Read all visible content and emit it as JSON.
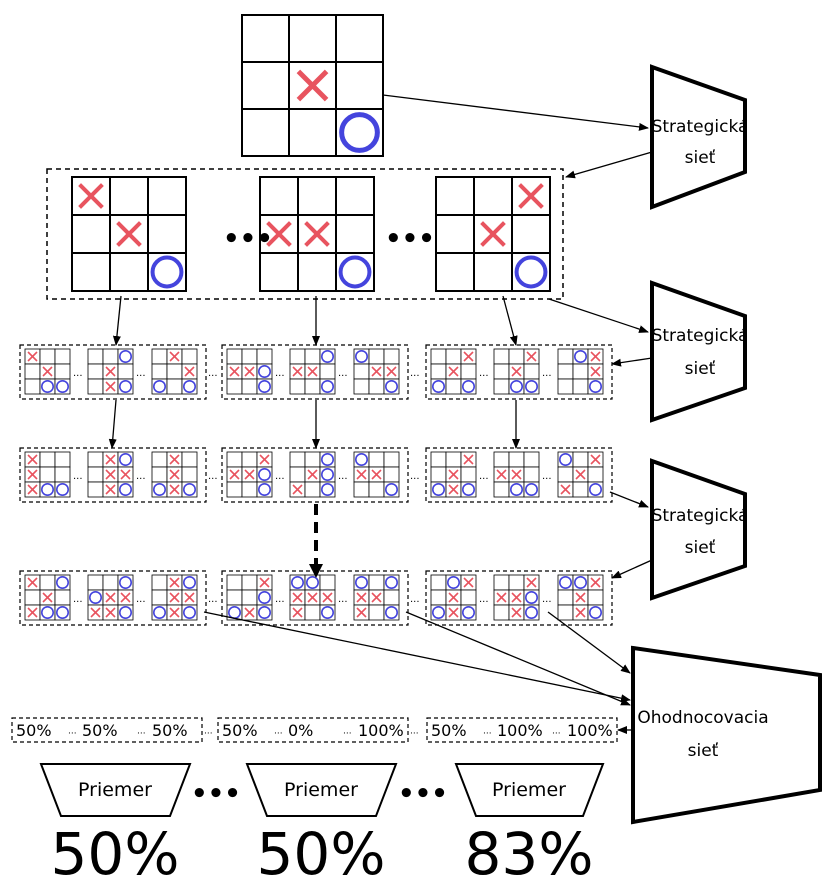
{
  "colors": {
    "x_mark": "#e8545f",
    "o_mark": "#4444dd",
    "line": "#000000"
  },
  "root_board": [
    "",
    "",
    "",
    "",
    "X",
    "",
    "",
    "",
    "O"
  ],
  "level1": {
    "boards": [
      [
        "X",
        "",
        "",
        "",
        "X",
        "",
        "",
        "",
        "O"
      ],
      [
        "",
        "",
        "",
        "X",
        "X",
        "",
        "",
        "",
        "O"
      ],
      [
        "",
        "",
        "X",
        "",
        "X",
        "",
        "",
        "",
        "O"
      ]
    ],
    "separator": "•••"
  },
  "small_separator": "···",
  "rows": [
    {
      "groups": [
        [
          [
            "X",
            "",
            "",
            "",
            "X",
            "",
            "",
            "O",
            "O"
          ],
          [
            "",
            "",
            "O",
            "",
            "X",
            "",
            "",
            "X",
            "O"
          ],
          [
            "",
            "X",
            "",
            "",
            "",
            "X",
            "O",
            "",
            "O"
          ]
        ],
        [
          [
            "",
            "",
            "",
            "X",
            "X",
            "O",
            "",
            "",
            "O"
          ],
          [
            "",
            "",
            "O",
            "X",
            "X",
            "",
            "",
            "",
            "O"
          ],
          [
            "O",
            "",
            "",
            "",
            "X",
            "X",
            "",
            "",
            "O"
          ]
        ],
        [
          [
            "",
            "",
            "X",
            "",
            "X",
            "",
            "O",
            "",
            "O"
          ],
          [
            "",
            "",
            "X",
            "",
            "X",
            "",
            "",
            "O",
            "O"
          ],
          [
            "",
            "O",
            "X",
            "",
            "",
            "X",
            "",
            "",
            "O"
          ]
        ]
      ]
    },
    {
      "groups": [
        [
          [
            "X",
            "",
            "",
            "X",
            "",
            "",
            "X",
            "O",
            "O"
          ],
          [
            "",
            "X",
            "O",
            "",
            "X",
            "X",
            "",
            "X",
            "O"
          ],
          [
            "",
            "X",
            "",
            "",
            "X",
            "",
            "O",
            "X",
            "O"
          ]
        ],
        [
          [
            "",
            "",
            "X",
            "X",
            "X",
            "O",
            "",
            "",
            "O"
          ],
          [
            "",
            "",
            "O",
            "",
            "X",
            "O",
            "X",
            "",
            "O"
          ],
          [
            "O",
            "",
            "",
            "X",
            "X",
            "",
            "",
            "",
            "O"
          ]
        ],
        [
          [
            "",
            "",
            "X",
            "",
            "X",
            "",
            "O",
            "X",
            "O"
          ],
          [
            "",
            "",
            "",
            "X",
            "X",
            "",
            "",
            "O",
            "O"
          ],
          [
            "O",
            "",
            "X",
            "",
            "X",
            "",
            "X",
            "",
            "O"
          ]
        ]
      ]
    },
    {
      "groups": [
        [
          [
            "X",
            "",
            "O",
            "",
            "X",
            "",
            "X",
            "O",
            "O"
          ],
          [
            "",
            "",
            "O",
            "O",
            "X",
            "X",
            "X",
            "X",
            "O"
          ],
          [
            "",
            "X",
            "O",
            "",
            "X",
            "X",
            "O",
            "X",
            "O"
          ]
        ],
        [
          [
            "",
            "",
            "X",
            "",
            "",
            "O",
            "O",
            "X",
            "O"
          ],
          [
            "O",
            "O",
            "",
            "X",
            "X",
            "X",
            "X",
            "",
            "O"
          ],
          [
            "O",
            "",
            "O",
            "X",
            "X",
            "",
            "X",
            "",
            "O"
          ]
        ],
        [
          [
            "",
            "O",
            "X",
            "",
            "X",
            "",
            "O",
            "X",
            "O"
          ],
          [
            "",
            "",
            "X",
            "X",
            "X",
            "O",
            "",
            "X",
            "O"
          ],
          [
            "O",
            "O",
            "X",
            "",
            "X",
            "",
            "",
            "X",
            "O"
          ]
        ]
      ]
    }
  ],
  "value_groups": [
    [
      "50%",
      "50%",
      "50%"
    ],
    [
      "50%",
      "0%",
      "100%"
    ],
    [
      "50%",
      "100%",
      "100%"
    ]
  ],
  "policy_net": {
    "line1": "Strategická",
    "line2": "sieť"
  },
  "value_net": {
    "line1": "Ohodnocovacia",
    "line2": "sieť"
  },
  "average_label": "Priemer",
  "big_separator": "•••",
  "results": [
    "50%",
    "50%",
    "83%"
  ]
}
